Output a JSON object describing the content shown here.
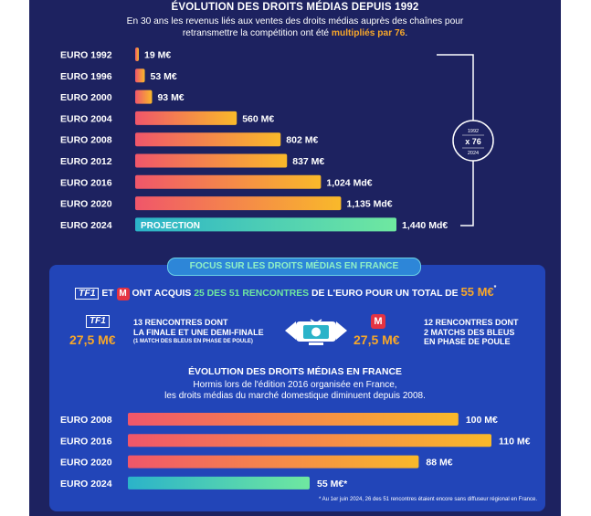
{
  "header": {
    "title": "ÉVOLUTION DES DROITS MÉDIAS DEPUIS 1992",
    "subtitle_line1": "En 30 ans les revenus liés aux ventes des droits médias auprès des chaînes pour",
    "subtitle_line2_pre": "retransmettre la compétition ont été ",
    "subtitle_line2_hl": "multipliés par 76",
    "subtitle_line2_post": "."
  },
  "multiplier_badge": {
    "from": "1992",
    "factor": "x 76",
    "to": "2024"
  },
  "projection_label": "PROJECTION",
  "focus": {
    "pill": "FOCUS SUR LES DROITS MÉDIAS EN FRANCE",
    "headline_logo1": "TF1",
    "headline_and": "ET",
    "headline_logo2": "M",
    "headline_mid": "ONT ACQUIS",
    "headline_count": "25 DES 51 RENCONTRES",
    "headline_post": "DE L'EURO POUR UN TOTAL DE",
    "headline_total": "55 M€",
    "headline_star": "*",
    "tf1_amount": "27,5 M€",
    "tf1_desc_1": "13 RENCONTRES DONT",
    "tf1_desc_2": "LA FINALE ET UNE DEMI-FINALE",
    "tf1_desc_3": "(1 MATCH DES BLEUS EN PHASE DE POULE)",
    "m6_amount": "27,5 M€",
    "m6_desc_1": "12 RENCONTRES DONT",
    "m6_desc_2": "2 MATCHS DES BLEUS",
    "m6_desc_3": "EN PHASE DE POULE",
    "section_title": "ÉVOLUTION DES DROITS MÉDIAS EN FRANCE",
    "section_sub_1": "Hormis lors de l'édition 2016 organisée en France,",
    "section_sub_2": "les droits médias du marché domestique diminuent depuis 2008.",
    "footnote": "* Au 1er juin 2024, 26 des 51 rencontres étaient encore sans diffuseur régional en France."
  },
  "colors": {
    "background": "#1d2260",
    "panel": "#2245b8",
    "accent_orange": "#f7a72a",
    "bar_start": "#f0566a",
    "bar_end": "#f9b92a",
    "projection_start": "#2bb3c9",
    "projection_end": "#6fe8a0"
  },
  "chart_data": [
    {
      "type": "bar",
      "orientation": "horizontal",
      "title": "ÉVOLUTION DES DROITS MÉDIAS DEPUIS 1992",
      "categories": [
        "EURO 1992",
        "EURO 1996",
        "EURO 2000",
        "EURO 2004",
        "EURO 2008",
        "EURO 2012",
        "EURO 2016",
        "EURO 2020",
        "EURO 2024"
      ],
      "values": [
        19,
        53,
        93,
        560,
        802,
        837,
        1024,
        1135,
        1440
      ],
      "unit": "M€",
      "labels": [
        "19 M€",
        "53 M€",
        "93 M€",
        "560 M€",
        "802 M€",
        "837 M€",
        "1,024 Md€",
        "1,135 Md€",
        "1,440 Md€"
      ],
      "projection_index": 8
    },
    {
      "type": "bar",
      "orientation": "horizontal",
      "title": "ÉVOLUTION DES DROITS MÉDIAS EN FRANCE",
      "categories": [
        "EURO 2008",
        "EURO 2016",
        "EURO 2020",
        "EURO 2024"
      ],
      "values": [
        100,
        110,
        88,
        55
      ],
      "unit": "M€",
      "labels": [
        "100 M€",
        "110 M€",
        "88 M€",
        "55 M€*"
      ],
      "projection_index": 3
    }
  ]
}
